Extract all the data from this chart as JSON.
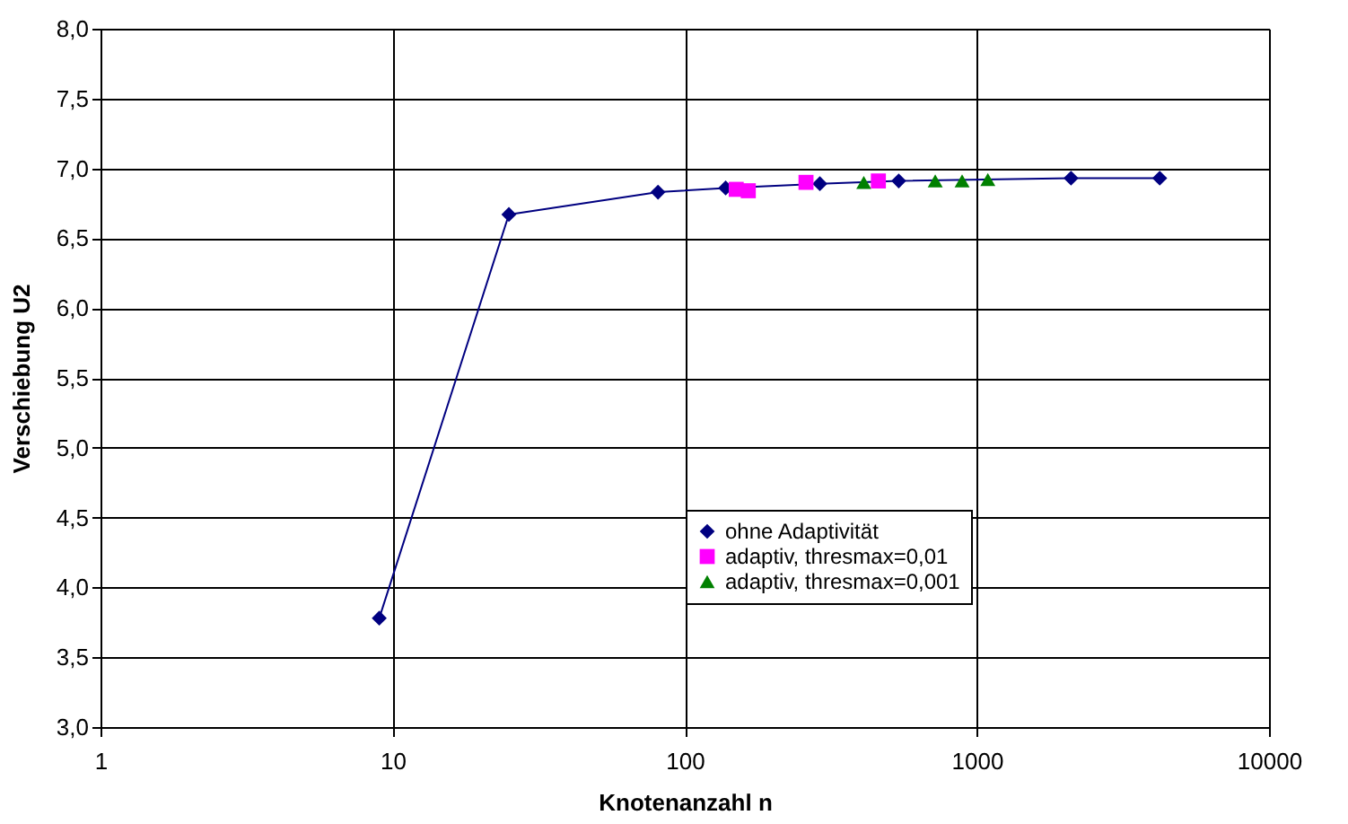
{
  "chart_data": {
    "type": "line",
    "xlabel": "Knotenanzahl n",
    "ylabel": "Verschiebung U2",
    "log": "x",
    "grid": true,
    "legend": "right",
    "xlim": [
      1,
      10000
    ],
    "xticks": [
      1,
      10,
      100,
      1000,
      10000
    ],
    "ylim": [
      3,
      8
    ],
    "yticks": [
      {
        "value": 3,
        "label": "3,0"
      },
      {
        "value": 3.5,
        "label": "3,5"
      },
      {
        "value": 4,
        "label": "4,0"
      },
      {
        "value": 4.5,
        "label": "4,5"
      },
      {
        "value": 5,
        "label": "5,0"
      },
      {
        "value": 5.5,
        "label": "5,5"
      },
      {
        "value": 6,
        "label": "6,0"
      },
      {
        "value": 6.5,
        "label": "6,5"
      },
      {
        "value": 7,
        "label": "7,0"
      },
      {
        "value": 7.5,
        "label": "7,5"
      },
      {
        "value": 8,
        "label": "8,0"
      }
    ],
    "series": [
      {
        "name": "ohne Adaptivität",
        "marker": "diamond",
        "color": "#000080",
        "x": [
          9,
          25,
          81,
          138,
          290,
          540,
          2100,
          4225
        ],
        "values": [
          3.78,
          6.67,
          6.83,
          6.86,
          6.89,
          6.91,
          6.93,
          6.93
        ]
      },
      {
        "name": "adaptiv, thresmax=0,01",
        "type": "scatter",
        "marker": "square",
        "color": "#ff00ff",
        "x": [
          150,
          165,
          260,
          460
        ],
        "values": [
          6.85,
          6.84,
          6.9,
          6.91
        ]
      },
      {
        "name": "adaptiv, thresmax=0,001",
        "type": "scatter",
        "marker": "triangle",
        "color": "#008000",
        "x": [
          410,
          720,
          890,
          1090
        ],
        "values": [
          6.9,
          6.91,
          6.91,
          6.92
        ]
      }
    ]
  }
}
